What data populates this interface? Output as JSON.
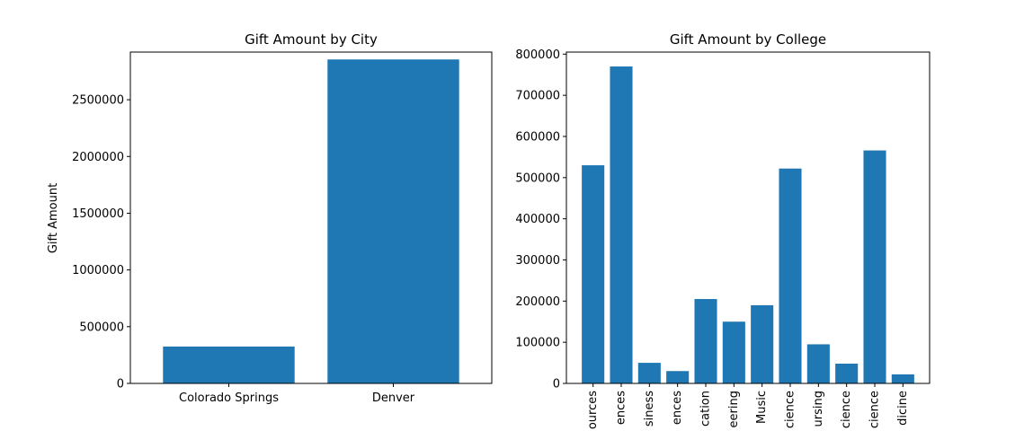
{
  "chart_data": [
    {
      "type": "bar",
      "title": "Gift Amount by City",
      "xlabel": "",
      "ylabel": "Gift Amount",
      "categories": [
        "Colorado Springs",
        "Denver"
      ],
      "values": [
        325000,
        2855000
      ],
      "ylim": [
        0,
        2920000
      ],
      "yticks": [
        0,
        500000,
        1000000,
        1500000,
        2000000,
        2500000
      ],
      "ytick_labels": [
        "0",
        "500000",
        "1000000",
        "1500000",
        "2000000",
        "2500000"
      ],
      "color": "#1f77b4",
      "grid": false
    },
    {
      "type": "bar",
      "title": "Gift Amount by College",
      "xlabel": "",
      "ylabel": "",
      "categories": [
        "ources",
        "ences",
        "siness",
        "ences",
        "cation",
        "eering",
        "Music",
        "cience",
        "ursing",
        "cience",
        "cience",
        "dicine"
      ],
      "values": [
        530000,
        770000,
        50000,
        30000,
        205000,
        150000,
        190000,
        522000,
        95000,
        48000,
        566000,
        22000
      ],
      "ylim": [
        0,
        805000
      ],
      "yticks": [
        0,
        100000,
        200000,
        300000,
        400000,
        500000,
        600000,
        700000,
        800000
      ],
      "ytick_labels": [
        "0",
        "100000",
        "200000",
        "300000",
        "400000",
        "500000",
        "600000",
        "700000",
        "800000"
      ],
      "color": "#1f77b4",
      "grid": false
    }
  ]
}
